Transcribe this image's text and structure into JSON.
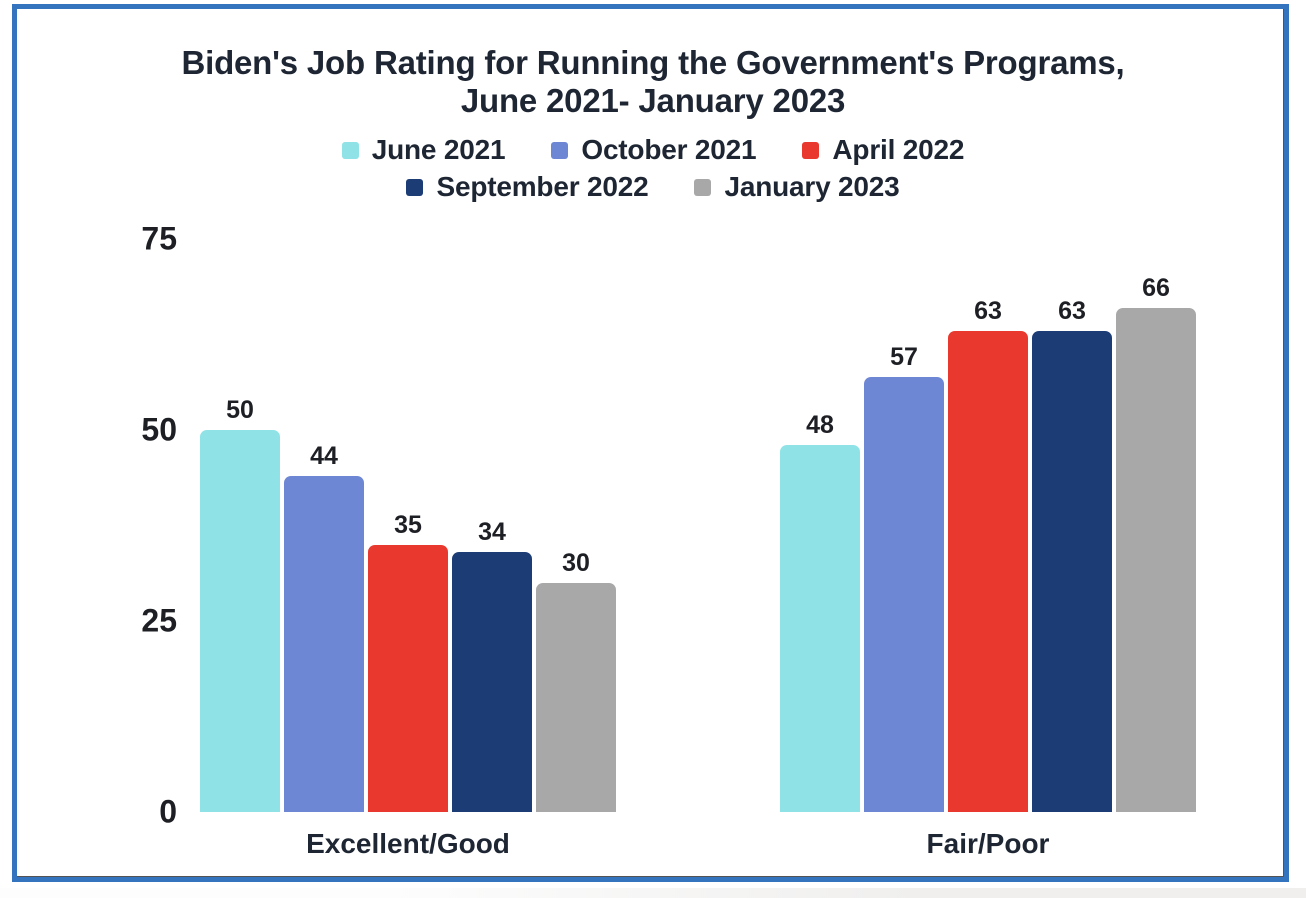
{
  "header": {
    "title_line1": "Biden's Job Rating for Running the Government's Programs,",
    "title_line2": "June 2021- January 2023"
  },
  "frame": {
    "border_color": "#3474BE"
  },
  "chart_data": {
    "type": "bar",
    "title": "Biden's Job Rating for Running the Government's Programs, June 2021- January 2023",
    "categories": [
      "Excellent/Good",
      "Fair/Poor"
    ],
    "series": [
      {
        "name": "June 2021",
        "color": "#8FE3E6",
        "values": [
          50,
          48
        ]
      },
      {
        "name": "October 2021",
        "color": "#6E87D4",
        "values": [
          44,
          57
        ]
      },
      {
        "name": "April 2022",
        "color": "#E9392E",
        "values": [
          35,
          63
        ]
      },
      {
        "name": "September 2022",
        "color": "#1C3C75",
        "values": [
          34,
          63
        ]
      },
      {
        "name": "January 2023",
        "color": "#A8A8A8",
        "values": [
          30,
          66
        ]
      }
    ],
    "y_ticks": [
      0,
      25,
      50,
      75
    ],
    "ylim": [
      0,
      75
    ],
    "grid": false,
    "bar_labels": true,
    "legend_position": "top",
    "legend_rows": [
      [
        "June 2021",
        "October 2021",
        "April 2022"
      ],
      [
        "September 2022",
        "January 2023"
      ]
    ]
  }
}
